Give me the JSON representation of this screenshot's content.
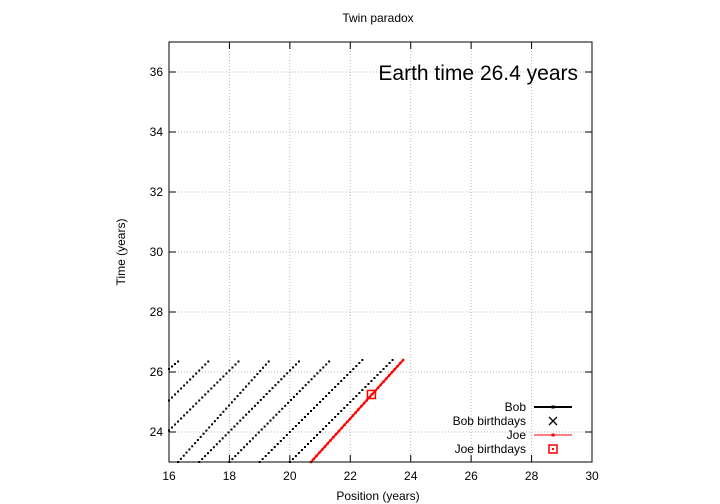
{
  "chart_data": {
    "type": "scatter",
    "title": "Twin paradox",
    "xlabel": "Position (years)",
    "ylabel": "Time (years)",
    "annotation": "Earth time 26.4 years",
    "xlim": [
      16,
      30
    ],
    "ylim": [
      23,
      37
    ],
    "xticks": [
      16,
      18,
      20,
      22,
      24,
      26,
      28,
      30
    ],
    "yticks": [
      24,
      26,
      28,
      30,
      32,
      34,
      36
    ],
    "grid": true,
    "legend_position": "bottom-right",
    "series": [
      {
        "name": "Bob",
        "color": "#000000",
        "worldlines": [
          {
            "x": [
              16.0,
              16.3
            ],
            "y": [
              26.1,
              26.35
            ]
          },
          {
            "x": [
              16.0,
              17.3
            ],
            "y": [
              25.05,
              26.35
            ]
          },
          {
            "x": [
              16.0,
              18.3
            ],
            "y": [
              24.05,
              26.35
            ]
          },
          {
            "x": [
              16.3,
              19.3
            ],
            "y": [
              23.0,
              26.35
            ]
          },
          {
            "x": [
              17.0,
              20.3
            ],
            "y": [
              23.0,
              26.35
            ]
          },
          {
            "x": [
              18.0,
              21.3
            ],
            "y": [
              23.0,
              26.35
            ]
          },
          {
            "x": [
              19.0,
              22.4
            ],
            "y": [
              23.0,
              26.4
            ]
          },
          {
            "x": [
              20.0,
              23.4
            ],
            "y": [
              23.0,
              26.4
            ]
          }
        ]
      },
      {
        "name": "Bob birthdays",
        "color": "#000000",
        "points": []
      },
      {
        "name": "Joe",
        "color": "#ff0000",
        "worldlines": [
          {
            "x": [
              20.7,
              23.75
            ],
            "y": [
              23.0,
              26.4
            ]
          }
        ]
      },
      {
        "name": "Joe birthdays",
        "color": "#ff0000",
        "points": [
          {
            "x": 22.7,
            "y": 25.25
          }
        ]
      }
    ]
  }
}
